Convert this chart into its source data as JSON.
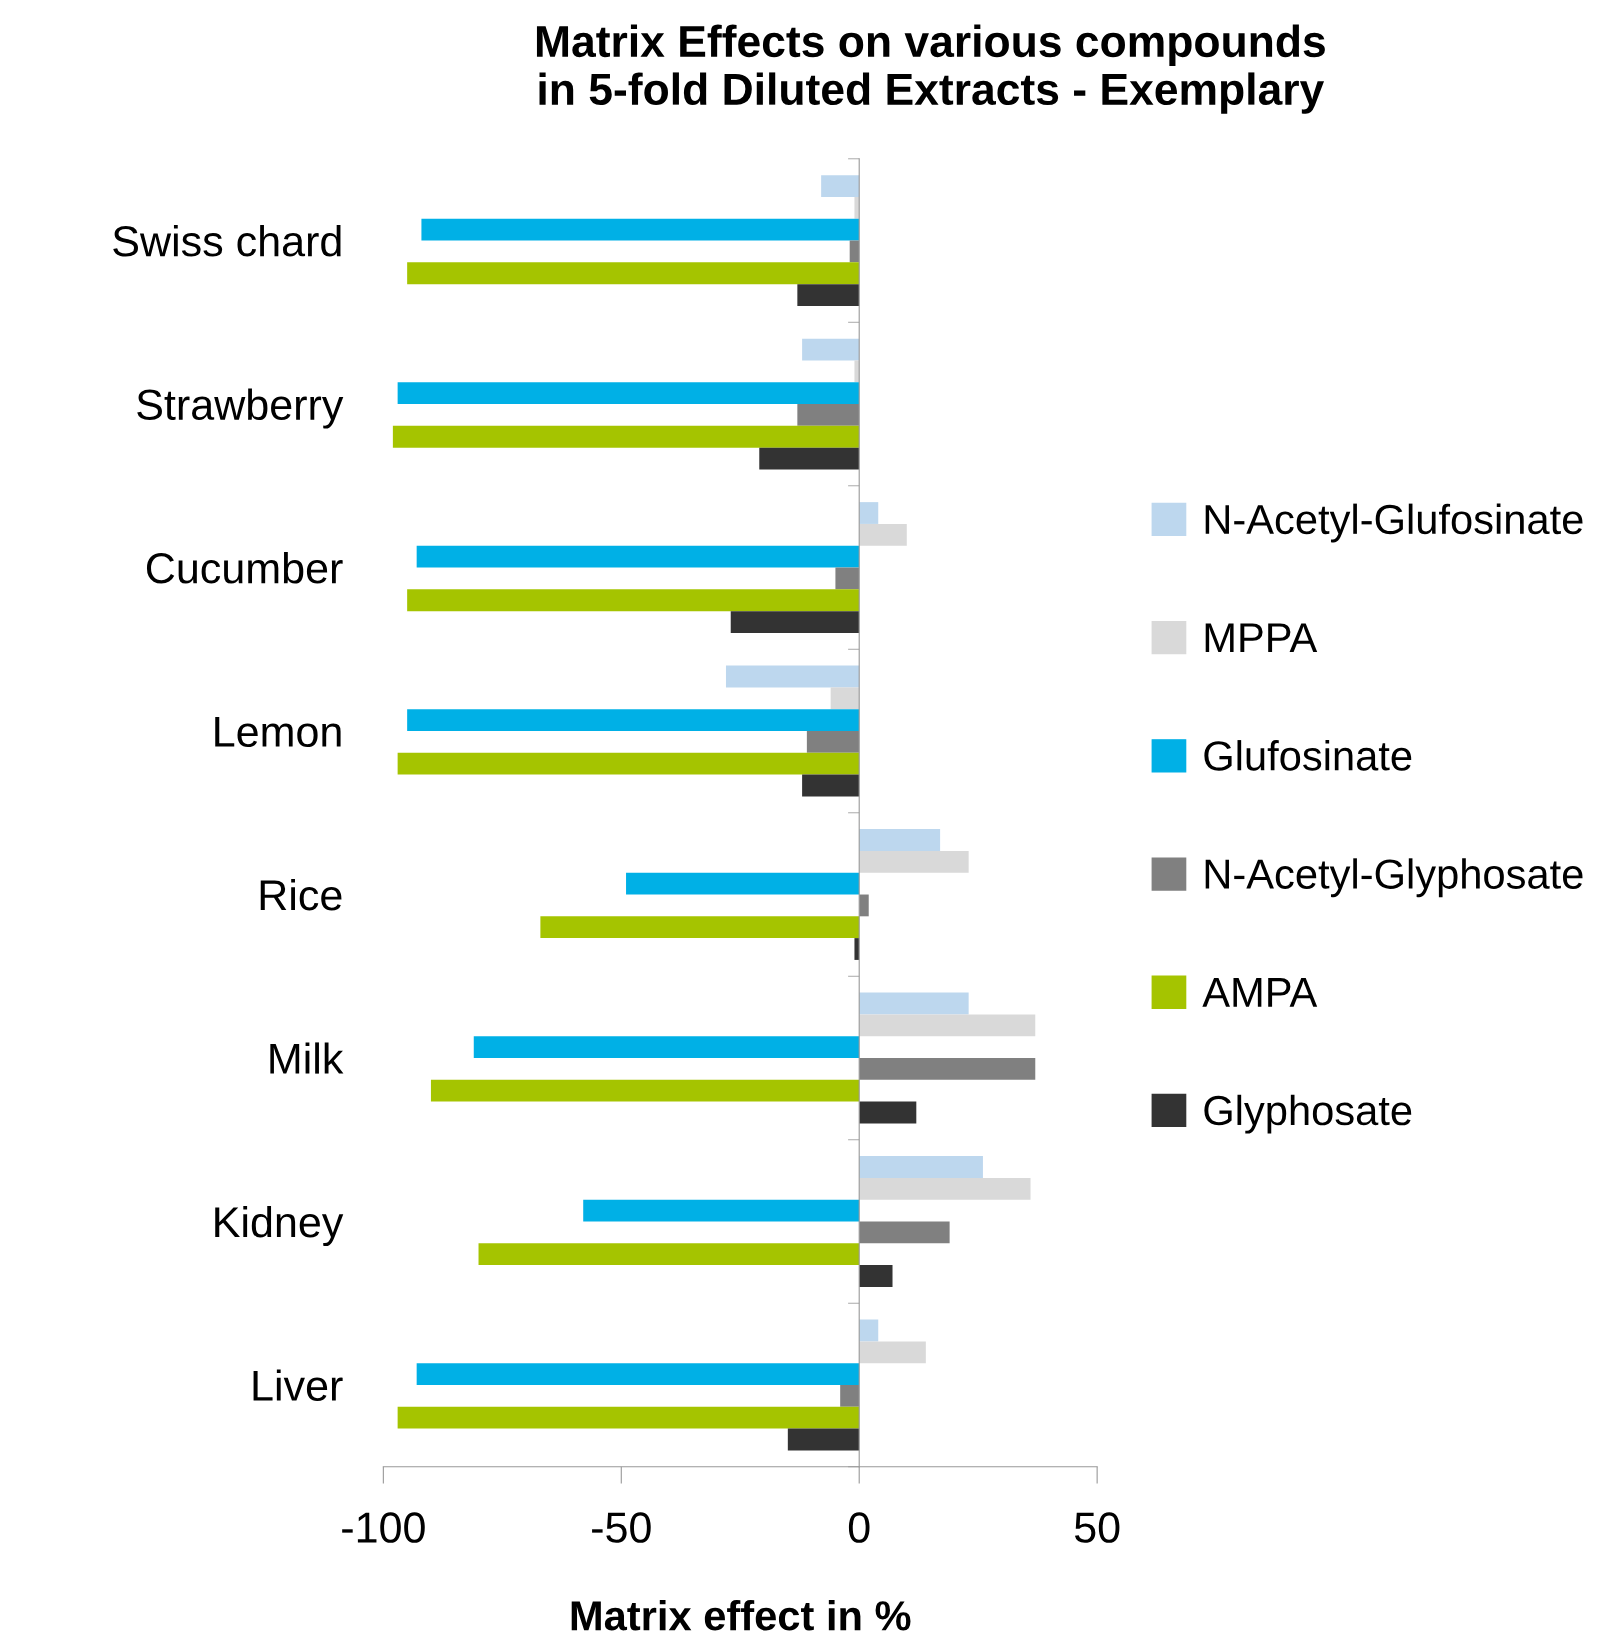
{
  "chart_data": {
    "type": "bar",
    "orientation": "horizontal",
    "title": "Matrix Effects on various compounds\nin 5-fold Diluted Extracts - Exemplary",
    "xlabel": "Matrix effect in %",
    "categories": [
      "Swiss chard",
      "Strawberry",
      "Cucumber",
      "Lemon",
      "Rice",
      "Milk",
      "Kidney",
      "Liver"
    ],
    "series": [
      {
        "name": "N-Acetyl-Glufosinate",
        "color": "#bdd7ee",
        "values": [
          -8,
          -12,
          4,
          -28,
          17,
          23,
          26,
          4
        ]
      },
      {
        "name": "MPPA",
        "color": "#d9d9d9",
        "values": [
          -1,
          -1,
          10,
          -6,
          23,
          37,
          36,
          14
        ]
      },
      {
        "name": "Glufosinate",
        "color": "#00b0e6",
        "values": [
          -92,
          -97,
          -93,
          -95,
          -49,
          -81,
          -58,
          -93
        ]
      },
      {
        "name": "N-Acetyl-Glyphosate",
        "color": "#808080",
        "values": [
          -2,
          -13,
          -5,
          -11,
          2,
          37,
          19,
          -4
        ]
      },
      {
        "name": "AMPA",
        "color": "#a5c400",
        "values": [
          -95,
          -98,
          -95,
          -97,
          -67,
          -90,
          -80,
          -97
        ]
      },
      {
        "name": "Glyphosate",
        "color": "#333333",
        "values": [
          -13,
          -21,
          -27,
          -12,
          -1,
          12,
          7,
          -15
        ]
      }
    ],
    "xlim": [
      -100,
      50
    ],
    "xticks": [
      -100,
      -50,
      0,
      50
    ],
    "legend": "right"
  }
}
